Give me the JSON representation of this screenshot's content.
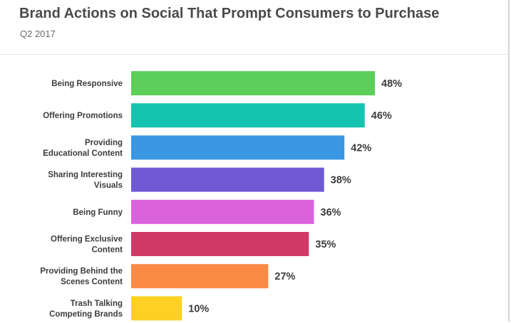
{
  "header": {
    "title": "Brand Actions on Social That Prompt Consumers to Purchase",
    "subtitle": "Q2 2017"
  },
  "chart_data": {
    "type": "bar",
    "orientation": "horizontal",
    "title": "Brand Actions on Social That Prompt Consumers to Purchase",
    "subtitle": "Q2 2017",
    "categories": [
      [
        "Being Responsive"
      ],
      [
        "Offering Promotions"
      ],
      [
        "Providing",
        "Educational Content"
      ],
      [
        "Sharing Interesting",
        "Visuals"
      ],
      [
        "Being Funny"
      ],
      [
        "Offering Exclusive",
        "Content"
      ],
      [
        "Providing Behind the",
        "Scenes Content"
      ],
      [
        "Trash Talking",
        "Competing Brands"
      ]
    ],
    "values": [
      48,
      46,
      42,
      38,
      36,
      35,
      27,
      10
    ],
    "value_labels": [
      "48%",
      "46%",
      "42%",
      "38%",
      "36%",
      "35%",
      "27%",
      "10%"
    ],
    "unit": "%",
    "colors": [
      "#5ccf5a",
      "#15c4b0",
      "#3a97e3",
      "#7059d4",
      "#db62dd",
      "#cf3a64",
      "#fb8a45",
      "#fdd024"
    ],
    "xlim": [
      0,
      48
    ],
    "grid": false,
    "legend": "none"
  }
}
